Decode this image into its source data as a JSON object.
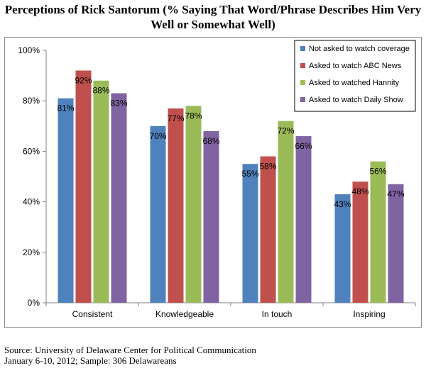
{
  "title_line1": "Perceptions of Rick Santorum (% Saying That Word/Phrase Describes Him Very",
  "title_line2": "Well or Somewhat Well)",
  "footer_line1": "Source: University of Delaware Center for Political Communication",
  "footer_line2": "January 6-10, 2012; Sample: 306 Delawareans",
  "chart_data": {
    "type": "bar",
    "categories": [
      "Consistent",
      "Knowledgeable",
      "In touch",
      "Inspiring"
    ],
    "series": [
      {
        "name": "Not asked to watch coverage",
        "values": [
          81,
          70,
          55,
          43
        ],
        "labels": [
          "81%",
          "70%",
          "55%",
          "43%"
        ],
        "color": "#4f81bd"
      },
      {
        "name": "Asked to watch ABC News",
        "values": [
          92,
          77,
          58,
          48
        ],
        "labels": [
          "92%",
          "77%",
          "58%",
          "48%"
        ],
        "color": "#c0504d"
      },
      {
        "name": "Asked to watched Hannity",
        "values": [
          88,
          78,
          72,
          56
        ],
        "labels": [
          "88%",
          "78%",
          "72%",
          "56%"
        ],
        "color": "#9bbb59"
      },
      {
        "name": "Asked to watch Daily Show",
        "values": [
          83,
          68,
          66,
          47
        ],
        "labels": [
          "83%",
          "68%",
          "66%",
          "47%"
        ],
        "color": "#8064a2"
      }
    ],
    "ylim": [
      0,
      100
    ],
    "yticks": [
      0,
      20,
      40,
      60,
      80,
      100
    ],
    "ytick_labels": [
      "0%",
      "20%",
      "40%",
      "60%",
      "80%",
      "100%"
    ],
    "grid": false,
    "legend_position": "top-right"
  }
}
